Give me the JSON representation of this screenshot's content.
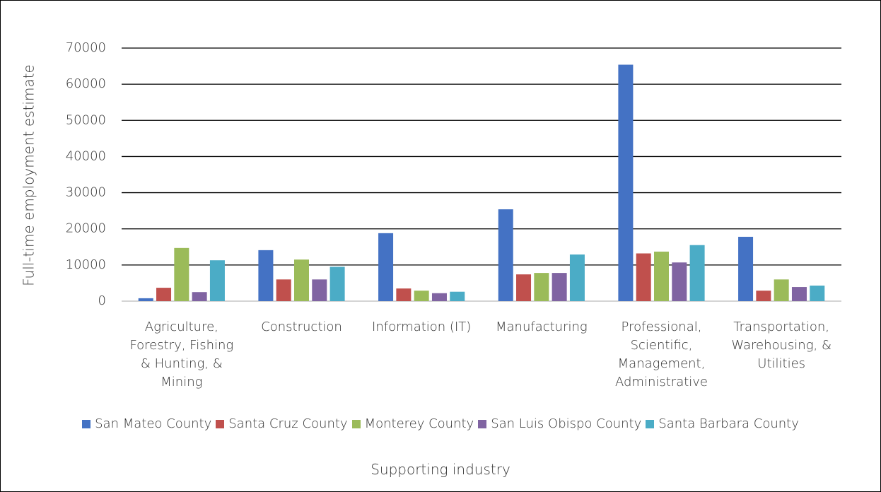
{
  "chart_data": {
    "type": "bar",
    "x_label": "Supporting industry",
    "y_label": "Full-time employment estimate",
    "categories": [
      "Agriculture, Forestry, Fishing & Hunting, & Mining",
      "Construction",
      "Information (IT)",
      "Manufacturing",
      "Professional, Scientific, Management, Administrative",
      "Transportation, Warehousing, & Utilities"
    ],
    "series": [
      {
        "name": "San Mateo County",
        "color": "#4472c4",
        "values": [
          800,
          14100,
          18800,
          25400,
          65400,
          17800
        ]
      },
      {
        "name": "Santa Cruz County",
        "color": "#c0504d",
        "values": [
          3700,
          6000,
          3500,
          7400,
          13200,
          2900
        ]
      },
      {
        "name": "Monterey County",
        "color": "#9bbb59",
        "values": [
          14700,
          11500,
          2900,
          7800,
          13700,
          6000
        ]
      },
      {
        "name": "San Luis Obispo County",
        "color": "#8064a2",
        "values": [
          2500,
          6000,
          2200,
          7800,
          10700,
          3900
        ]
      },
      {
        "name": "Santa Barbara County",
        "color": "#4bacc6",
        "values": [
          11300,
          9500,
          2600,
          12900,
          15500,
          4300
        ]
      }
    ],
    "ylim": [
      0,
      70000
    ],
    "yticks": [
      0,
      10000,
      20000,
      30000,
      40000,
      50000,
      60000,
      70000
    ],
    "grid": true,
    "legend": "bottom"
  }
}
